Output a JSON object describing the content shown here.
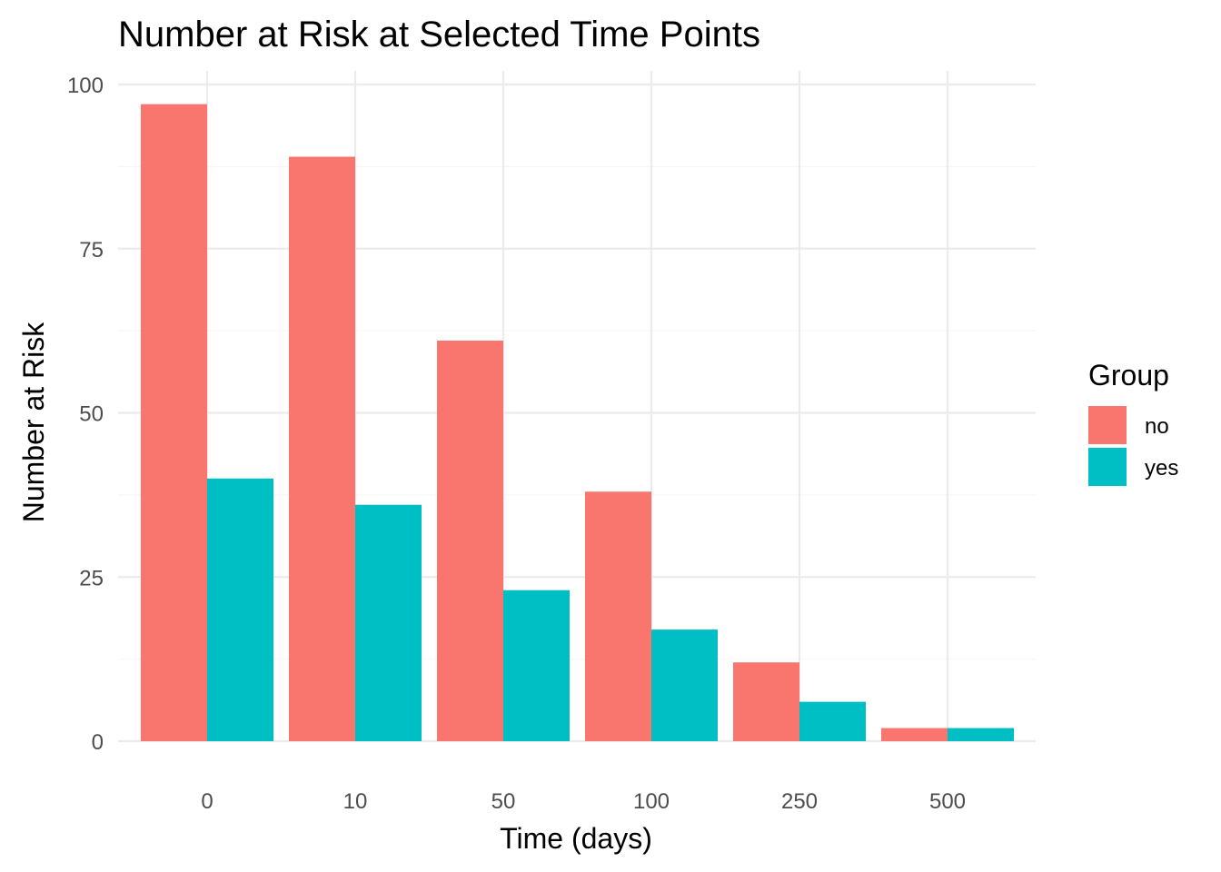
{
  "chart_data": {
    "type": "bar",
    "title": "Number at Risk at Selected Time Points",
    "xlabel": "Time (days)",
    "ylabel": "Number at Risk",
    "categories": [
      "0",
      "10",
      "50",
      "100",
      "250",
      "500"
    ],
    "ylim": [
      0,
      100
    ],
    "yticks": [
      "0",
      "25",
      "50",
      "75",
      "100"
    ],
    "grid": true,
    "legend": {
      "title": "Group",
      "position": "right"
    },
    "series": [
      {
        "name": "no",
        "color": "#F8766D",
        "values": [
          97,
          89,
          61,
          38,
          12,
          2
        ]
      },
      {
        "name": "yes",
        "color": "#00BFC4",
        "values": [
          40,
          36,
          23,
          17,
          6,
          2
        ]
      }
    ]
  }
}
